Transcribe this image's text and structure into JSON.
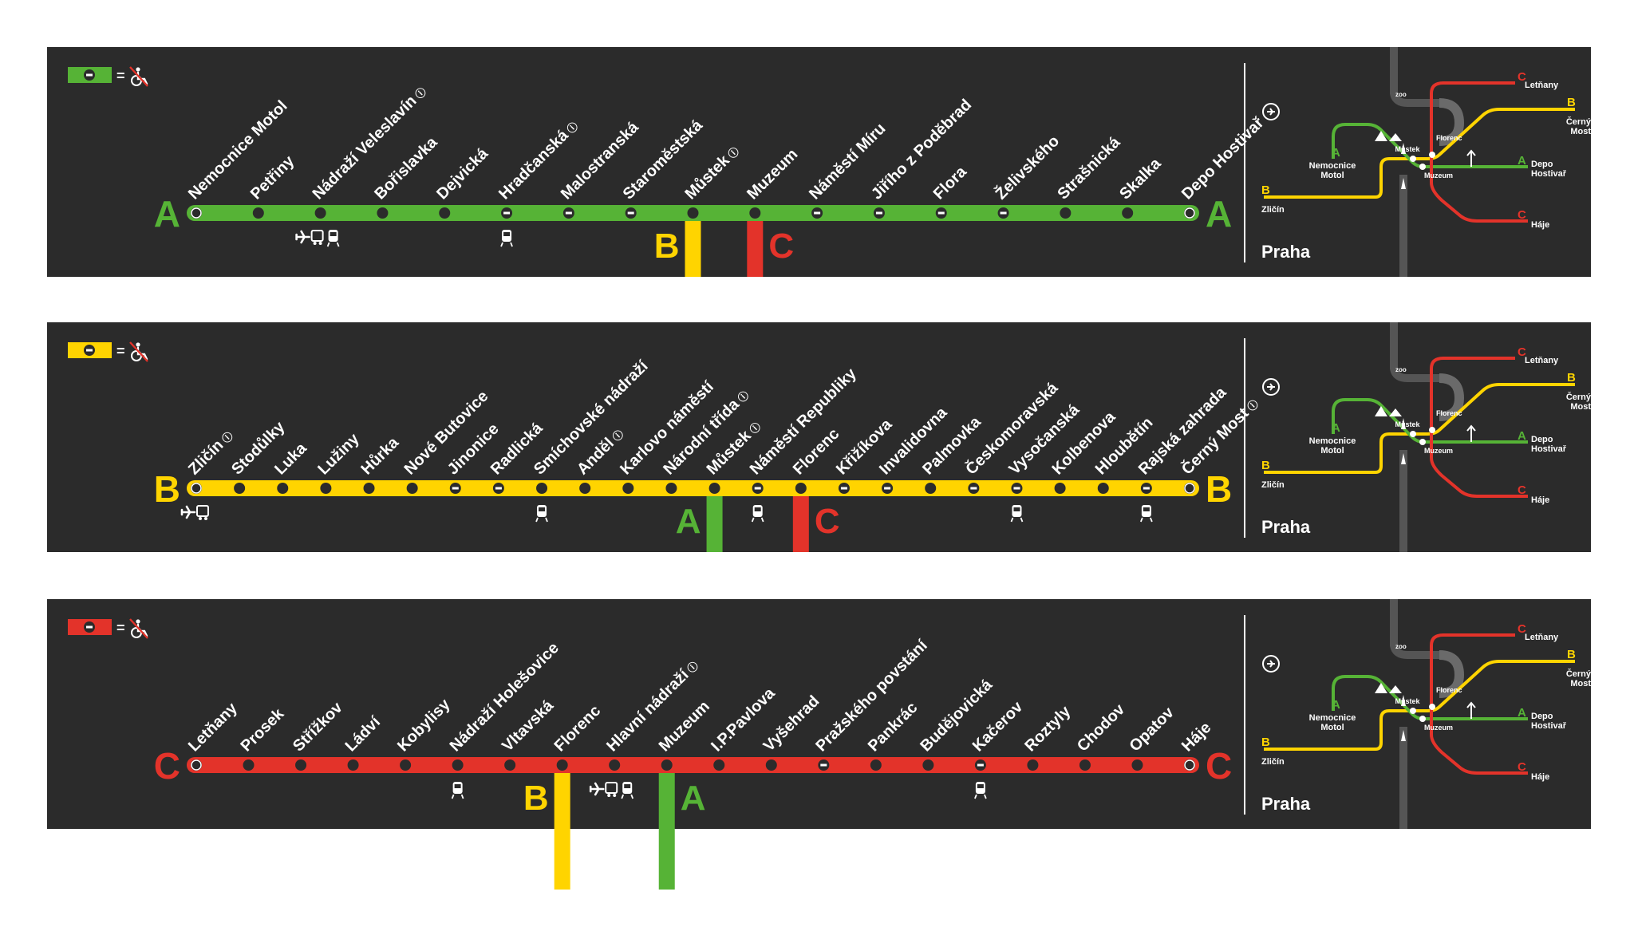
{
  "colors": {
    "A": "#56b336",
    "B": "#ffd400",
    "C": "#e3332a",
    "panel": "#2b2b2b",
    "dot": "#2b2b2b",
    "text": "#ffffff",
    "river": "#555555"
  },
  "legend": {
    "equals": "=",
    "icon": "wheelchair-icon"
  },
  "lines": [
    {
      "id": "A",
      "letter": "A",
      "stations": [
        {
          "name": "Nemocnice Motol",
          "access": false,
          "info": false,
          "transfer": null,
          "icons": []
        },
        {
          "name": "Petřiny",
          "access": false,
          "info": false,
          "transfer": null,
          "icons": []
        },
        {
          "name": "Nádraží Veleslavín",
          "access": false,
          "info": true,
          "transfer": null,
          "icons": [
            "airport-bus-icon",
            "train-icon"
          ]
        },
        {
          "name": "Bořislavka",
          "access": false,
          "info": false,
          "transfer": null,
          "icons": []
        },
        {
          "name": "Dejvická",
          "access": false,
          "info": false,
          "transfer": null,
          "icons": []
        },
        {
          "name": "Hradčanská",
          "access": true,
          "info": true,
          "transfer": null,
          "icons": [
            "train-icon"
          ]
        },
        {
          "name": "Malostranská",
          "access": true,
          "info": false,
          "transfer": null,
          "icons": []
        },
        {
          "name": "Staroměstská",
          "access": true,
          "info": false,
          "transfer": null,
          "icons": []
        },
        {
          "name": "Můstek",
          "access": false,
          "info": true,
          "transfer": "B",
          "icons": []
        },
        {
          "name": "Muzeum",
          "access": false,
          "info": false,
          "transfer": "C",
          "icons": []
        },
        {
          "name": "Náměstí Míru",
          "access": true,
          "info": false,
          "transfer": null,
          "icons": []
        },
        {
          "name": "Jiřího z Poděbrad",
          "access": true,
          "info": false,
          "transfer": null,
          "icons": []
        },
        {
          "name": "Flora",
          "access": true,
          "info": false,
          "transfer": null,
          "icons": []
        },
        {
          "name": "Želivského",
          "access": true,
          "info": false,
          "transfer": null,
          "icons": []
        },
        {
          "name": "Strašnická",
          "access": false,
          "info": false,
          "transfer": null,
          "icons": []
        },
        {
          "name": "Skalka",
          "access": false,
          "info": false,
          "transfer": null,
          "icons": []
        },
        {
          "name": "Depo Hostivař",
          "access": false,
          "info": false,
          "transfer": null,
          "icons": []
        }
      ]
    },
    {
      "id": "B",
      "letter": "B",
      "stations": [
        {
          "name": "Zličín",
          "access": false,
          "info": true,
          "transfer": null,
          "icons": [
            "airport-bus-icon"
          ]
        },
        {
          "name": "Stodůlky",
          "access": false,
          "info": false,
          "transfer": null,
          "icons": []
        },
        {
          "name": "Luka",
          "access": false,
          "info": false,
          "transfer": null,
          "icons": []
        },
        {
          "name": "Lužiny",
          "access": false,
          "info": false,
          "transfer": null,
          "icons": []
        },
        {
          "name": "Hůrka",
          "access": false,
          "info": false,
          "transfer": null,
          "icons": []
        },
        {
          "name": "Nové Butovice",
          "access": false,
          "info": false,
          "transfer": null,
          "icons": []
        },
        {
          "name": "Jinonice",
          "access": true,
          "info": false,
          "transfer": null,
          "icons": []
        },
        {
          "name": "Radlická",
          "access": true,
          "info": false,
          "transfer": null,
          "icons": []
        },
        {
          "name": "Smíchovské nádraží",
          "access": false,
          "info": false,
          "transfer": null,
          "icons": [
            "train-icon"
          ]
        },
        {
          "name": "Anděl",
          "access": false,
          "info": true,
          "transfer": null,
          "icons": []
        },
        {
          "name": "Karlovo náměstí",
          "access": false,
          "info": false,
          "transfer": null,
          "icons": []
        },
        {
          "name": "Národní třída",
          "access": false,
          "info": true,
          "transfer": null,
          "icons": []
        },
        {
          "name": "Můstek",
          "access": false,
          "info": true,
          "transfer": "A",
          "icons": []
        },
        {
          "name": "Náměstí Republiky",
          "access": true,
          "info": false,
          "transfer": null,
          "icons": [
            "train-icon"
          ]
        },
        {
          "name": "Florenc",
          "access": false,
          "info": false,
          "transfer": "C",
          "icons": []
        },
        {
          "name": "Křižíkova",
          "access": true,
          "info": false,
          "transfer": null,
          "icons": []
        },
        {
          "name": "Invalidovna",
          "access": true,
          "info": false,
          "transfer": null,
          "icons": []
        },
        {
          "name": "Palmovka",
          "access": false,
          "info": false,
          "transfer": null,
          "icons": []
        },
        {
          "name": "Českomoravská",
          "access": true,
          "info": false,
          "transfer": null,
          "icons": []
        },
        {
          "name": "Vysočanská",
          "access": true,
          "info": false,
          "transfer": null,
          "icons": [
            "train-icon"
          ]
        },
        {
          "name": "Kolbenova",
          "access": false,
          "info": false,
          "transfer": null,
          "icons": []
        },
        {
          "name": "Hloubětín",
          "access": false,
          "info": false,
          "transfer": null,
          "icons": []
        },
        {
          "name": "Rajská zahrada",
          "access": true,
          "info": false,
          "transfer": null,
          "icons": [
            "train-icon"
          ]
        },
        {
          "name": "Černý Most",
          "access": false,
          "info": true,
          "transfer": null,
          "icons": []
        }
      ]
    },
    {
      "id": "C",
      "letter": "C",
      "stations": [
        {
          "name": "Letňany",
          "access": false,
          "info": false,
          "transfer": null,
          "icons": []
        },
        {
          "name": "Prosek",
          "access": false,
          "info": false,
          "transfer": null,
          "icons": []
        },
        {
          "name": "Střížkov",
          "access": false,
          "info": false,
          "transfer": null,
          "icons": []
        },
        {
          "name": "Ládví",
          "access": false,
          "info": false,
          "transfer": null,
          "icons": []
        },
        {
          "name": "Kobylisy",
          "access": false,
          "info": false,
          "transfer": null,
          "icons": []
        },
        {
          "name": "Nádraží Holešovice",
          "access": false,
          "info": false,
          "transfer": null,
          "icons": [
            "train-icon"
          ]
        },
        {
          "name": "Vltavská",
          "access": false,
          "info": false,
          "transfer": null,
          "icons": []
        },
        {
          "name": "Florenc",
          "access": false,
          "info": false,
          "transfer": "B",
          "icons": []
        },
        {
          "name": "Hlavní nádraží",
          "access": false,
          "info": true,
          "transfer": null,
          "icons": [
            "airport-bus-icon",
            "train-icon"
          ]
        },
        {
          "name": "Muzeum",
          "access": false,
          "info": false,
          "transfer": "A",
          "icons": []
        },
        {
          "name": "I.P.Pavlova",
          "access": false,
          "info": false,
          "transfer": null,
          "icons": []
        },
        {
          "name": "Vyšehrad",
          "access": false,
          "info": false,
          "transfer": null,
          "icons": []
        },
        {
          "name": "Pražského povstání",
          "access": true,
          "info": false,
          "transfer": null,
          "icons": []
        },
        {
          "name": "Pankrác",
          "access": false,
          "info": false,
          "transfer": null,
          "icons": []
        },
        {
          "name": "Budějovická",
          "access": false,
          "info": false,
          "transfer": null,
          "icons": []
        },
        {
          "name": "Kačerov",
          "access": true,
          "info": false,
          "transfer": null,
          "icons": [
            "train-icon"
          ]
        },
        {
          "name": "Roztyly",
          "access": false,
          "info": false,
          "transfer": null,
          "icons": []
        },
        {
          "name": "Chodov",
          "access": false,
          "info": false,
          "transfer": null,
          "icons": []
        },
        {
          "name": "Opatov",
          "access": false,
          "info": false,
          "transfer": null,
          "icons": []
        },
        {
          "name": "Háje",
          "access": false,
          "info": false,
          "transfer": null,
          "icons": []
        }
      ]
    }
  ],
  "minimap": {
    "title": "Praha",
    "airport_icon": "airplane-icon",
    "labels": {
      "letnany": "Letňany",
      "cerny_most_1": "Černý",
      "cerny_most_2": "Most",
      "nemocnice_1": "Nemocnice",
      "nemocnice_2": "Motol",
      "depo_1": "Depo",
      "depo_2": "Hostivař",
      "zlicin": "Zličín",
      "haje": "Háje",
      "zoo": "zoo",
      "mustek": "Můstek",
      "florenc": "Florenc",
      "muzeum": "Muzeum"
    }
  }
}
